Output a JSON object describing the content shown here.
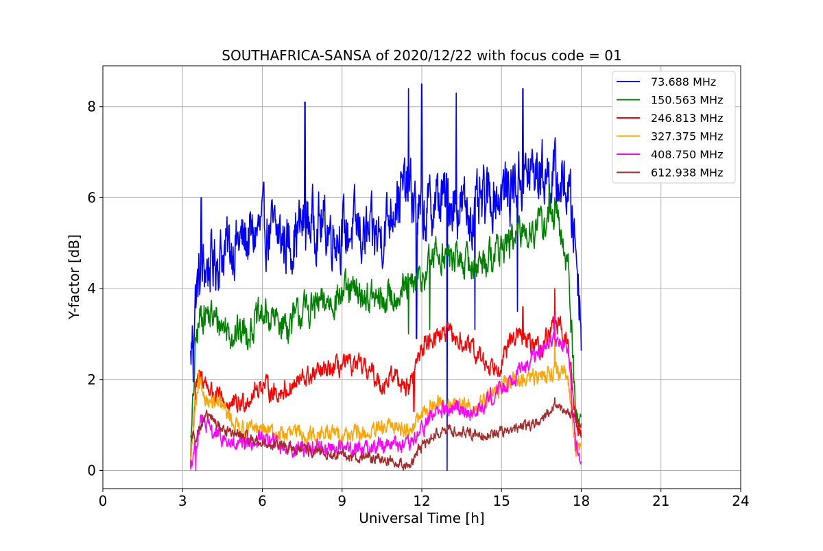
{
  "chart_data": {
    "type": "line",
    "title": "SOUTHAFRICA-SANSA of 2020/12/22 with focus code = 01",
    "xlabel": "Universal Time [h]",
    "ylabel": "Y-factor [dB]",
    "xlim": [
      0,
      24
    ],
    "ylim": [
      -0.4,
      8.9
    ],
    "xticks": [
      0,
      3,
      6,
      9,
      12,
      15,
      18,
      21,
      24
    ],
    "yticks": [
      0,
      2,
      4,
      6,
      8
    ],
    "grid": true,
    "legend_position": "top-right",
    "series": [
      {
        "name": " 73.688 MHz",
        "color": "#0000ff",
        "x": [
          3.3,
          3.5,
          3.7,
          4.0,
          4.5,
          5.0,
          5.5,
          6.0,
          6.5,
          7.0,
          7.5,
          8.0,
          8.5,
          9.0,
          9.5,
          10.0,
          10.5,
          11.0,
          11.5,
          12.0,
          12.5,
          13.0,
          13.5,
          14.0,
          14.5,
          15.0,
          15.5,
          16.0,
          16.5,
          17.0,
          17.5,
          17.8,
          18.0
        ],
        "y": [
          2.4,
          3.9,
          4.4,
          4.5,
          4.8,
          5.0,
          5.1,
          5.3,
          5.2,
          5.0,
          5.4,
          5.5,
          5.3,
          5.2,
          5.3,
          5.1,
          5.2,
          6.0,
          6.2,
          5.5,
          5.9,
          6.0,
          5.8,
          5.6,
          6.0,
          6.1,
          6.3,
          6.5,
          6.6,
          6.4,
          6.2,
          5.0,
          3.2
        ],
        "peaks": [
          [
            3.7,
            6.0
          ],
          [
            7.6,
            8.1
          ],
          [
            11.5,
            8.4
          ],
          [
            12.0,
            8.5
          ],
          [
            13.3,
            8.3
          ],
          [
            15.8,
            8.4
          ]
        ],
        "dips": [
          [
            3.4,
            1.95
          ],
          [
            11.8,
            2.9
          ],
          [
            12.95,
            0.0
          ],
          [
            14.0,
            3.1
          ],
          [
            15.6,
            3.5
          ]
        ],
        "noise": 0.55
      },
      {
        "name": "150.563 MHz",
        "color": "#008000",
        "x": [
          3.3,
          3.5,
          3.7,
          4.0,
          4.5,
          5.0,
          5.5,
          6.0,
          6.5,
          7.0,
          7.5,
          8.0,
          8.5,
          9.0,
          9.5,
          10.0,
          10.5,
          11.0,
          11.5,
          12.0,
          12.5,
          13.0,
          13.5,
          14.0,
          14.5,
          15.0,
          15.5,
          16.0,
          16.5,
          17.0,
          17.5,
          17.8,
          18.0
        ],
        "y": [
          0.3,
          2.8,
          3.5,
          3.4,
          3.2,
          3.0,
          3.1,
          3.4,
          3.3,
          3.2,
          3.5,
          3.6,
          3.7,
          3.9,
          3.9,
          3.8,
          3.7,
          3.9,
          4.0,
          4.2,
          4.8,
          4.7,
          4.6,
          4.5,
          4.7,
          4.9,
          5.1,
          5.3,
          5.4,
          5.6,
          4.6,
          1.2,
          1.0
        ],
        "peaks": [
          [
            16.8,
            6.3
          ],
          [
            17.0,
            6.0
          ]
        ],
        "dips": [
          [
            11.5,
            3.0
          ],
          [
            12.3,
            3.1
          ]
        ],
        "noise": 0.3
      },
      {
        "name": "246.813 MHz",
        "color": "#ff0000",
        "x": [
          3.3,
          3.5,
          3.7,
          4.0,
          4.5,
          5.0,
          5.5,
          6.0,
          6.5,
          7.0,
          7.5,
          8.0,
          8.5,
          9.0,
          9.5,
          10.0,
          10.5,
          11.0,
          11.5,
          12.0,
          12.5,
          13.0,
          13.5,
          14.0,
          14.5,
          15.0,
          15.5,
          16.0,
          16.5,
          17.0,
          17.5,
          17.8,
          18.0
        ],
        "y": [
          0.2,
          1.8,
          2.1,
          1.8,
          1.5,
          1.4,
          1.6,
          1.9,
          1.7,
          1.8,
          2.0,
          2.1,
          2.2,
          2.3,
          2.3,
          2.2,
          1.9,
          2.1,
          1.8,
          2.7,
          3.0,
          3.0,
          2.8,
          2.6,
          2.3,
          2.4,
          3.0,
          2.8,
          2.7,
          3.3,
          2.8,
          1.0,
          0.8
        ],
        "peaks": [
          [
            17.0,
            4.0
          ],
          [
            15.8,
            3.6
          ]
        ],
        "dips": [
          [
            11.7,
            1.3
          ]
        ],
        "noise": 0.18
      },
      {
        "name": "327.375 MHz",
        "color": "#ffa500",
        "x": [
          3.3,
          3.5,
          3.7,
          4.0,
          4.5,
          5.0,
          5.5,
          6.0,
          6.5,
          7.0,
          7.5,
          8.0,
          8.5,
          9.0,
          9.5,
          10.0,
          10.5,
          11.0,
          11.5,
          12.0,
          12.5,
          13.0,
          13.5,
          14.0,
          14.5,
          15.0,
          15.5,
          16.0,
          16.5,
          17.0,
          17.5,
          17.8,
          18.0
        ],
        "y": [
          0.2,
          1.5,
          1.8,
          1.5,
          1.4,
          1.0,
          0.9,
          0.9,
          0.8,
          0.8,
          0.8,
          0.8,
          0.8,
          0.8,
          0.8,
          0.8,
          0.9,
          1.0,
          0.9,
          1.2,
          1.5,
          1.4,
          1.5,
          1.3,
          1.7,
          1.8,
          2.0,
          2.0,
          2.1,
          2.2,
          2.0,
          0.5,
          0.4
        ],
        "peaks": [
          [
            3.6,
            2.2
          ],
          [
            17.0,
            3.0
          ]
        ],
        "dips": [],
        "noise": 0.15
      },
      {
        "name": "408.750 MHz",
        "color": "#ff00ff",
        "x": [
          3.3,
          3.5,
          3.7,
          4.0,
          4.5,
          5.0,
          5.5,
          6.0,
          6.5,
          7.0,
          7.5,
          8.0,
          8.5,
          9.0,
          9.5,
          10.0,
          10.5,
          11.0,
          11.5,
          12.0,
          12.5,
          13.0,
          13.5,
          14.0,
          14.5,
          15.0,
          15.5,
          16.0,
          16.5,
          17.0,
          17.5,
          17.8,
          18.0
        ],
        "y": [
          0.1,
          0.6,
          1.1,
          0.9,
          0.7,
          0.5,
          0.6,
          0.7,
          0.6,
          0.5,
          0.5,
          0.5,
          0.5,
          0.5,
          0.5,
          0.5,
          0.6,
          0.6,
          0.5,
          0.9,
          1.3,
          1.3,
          1.4,
          1.2,
          1.6,
          1.8,
          2.1,
          2.4,
          2.6,
          2.9,
          2.6,
          0.5,
          0.4
        ],
        "peaks": [
          [
            17.0,
            3.4
          ]
        ],
        "dips": [
          [
            3.5,
            0.0
          ]
        ],
        "noise": 0.15
      },
      {
        "name": "612.938 MHz",
        "color": "#a52a2a",
        "x": [
          3.3,
          3.5,
          3.7,
          4.0,
          4.5,
          5.0,
          5.5,
          6.0,
          6.5,
          7.0,
          7.5,
          8.0,
          8.5,
          9.0,
          9.5,
          10.0,
          10.5,
          11.0,
          11.5,
          12.0,
          12.5,
          13.0,
          13.5,
          14.0,
          14.5,
          15.0,
          15.5,
          16.0,
          16.5,
          17.0,
          17.5,
          17.8,
          18.0
        ],
        "y": [
          0.75,
          0.8,
          1.0,
          1.2,
          0.9,
          0.8,
          0.7,
          0.6,
          0.55,
          0.5,
          0.45,
          0.4,
          0.35,
          0.3,
          0.3,
          0.3,
          0.25,
          0.2,
          0.1,
          0.5,
          0.8,
          0.9,
          0.85,
          0.8,
          0.8,
          0.85,
          0.9,
          1.0,
          1.1,
          1.4,
          1.3,
          1.1,
          1.0
        ],
        "peaks": [
          [
            17.0,
            1.6
          ]
        ],
        "dips": [
          [
            11.3,
            0.0
          ]
        ],
        "noise": 0.1
      }
    ]
  }
}
